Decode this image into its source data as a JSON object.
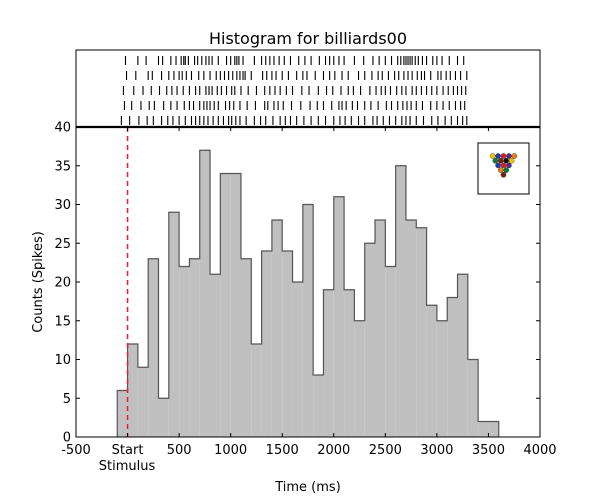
{
  "chart_data": {
    "type": "bar",
    "title": "Histogram for billiards00",
    "xlabel": "Time (ms)",
    "ylabel": "Counts (Spikes)",
    "xlim": [
      -500,
      4000
    ],
    "ylim": [
      0,
      40
    ],
    "x_ticks": [
      {
        "value": -500,
        "label": "-500"
      },
      {
        "value": 0,
        "label": "Start"
      },
      {
        "value": 500,
        "label": "500"
      },
      {
        "value": 1000,
        "label": "1000"
      },
      {
        "value": 1500,
        "label": "1500"
      },
      {
        "value": 2000,
        "label": "2000"
      },
      {
        "value": 2500,
        "label": "2500"
      },
      {
        "value": 3000,
        "label": "3000"
      },
      {
        "value": 3500,
        "label": "3500"
      },
      {
        "value": 4000,
        "label": "4000"
      }
    ],
    "x_sublabel": "Stimulus",
    "y_ticks": [
      0,
      5,
      10,
      15,
      20,
      25,
      30,
      35,
      40
    ],
    "bin_width_ms": 100,
    "bin_edges_start_ms": -100,
    "values": [
      6,
      12,
      9,
      23,
      5,
      29,
      22,
      23,
      37,
      21,
      34,
      34,
      23,
      12,
      24,
      28,
      24,
      20,
      30,
      8,
      19,
      31,
      19,
      15,
      25,
      28,
      22,
      35,
      28,
      27,
      17,
      15,
      18,
      21,
      10,
      2,
      2
    ],
    "stimulus_marker_ms": 0,
    "bar_fill": "#c0c0c0",
    "bar_edge": "#555555",
    "stimulus_line_color": "#e8202a",
    "raster": {
      "rows": [
        [
          -20,
          100,
          180,
          300,
          340,
          420,
          470,
          520,
          545,
          560,
          590,
          650,
          680,
          720,
          760,
          790,
          820,
          880,
          960,
          1000,
          1040,
          1060,
          1080,
          1120,
          1230,
          1300,
          1340,
          1380,
          1420,
          1470,
          1520,
          1580,
          1660,
          1720,
          1780,
          1860,
          1920,
          1960,
          2000,
          2050,
          2100,
          2200,
          2290,
          2380,
          2440,
          2500,
          2560,
          2620,
          2650,
          2680,
          2700,
          2720,
          2740,
          2760,
          2790,
          2820,
          2860,
          2900,
          2960,
          3000,
          3050,
          3120,
          3200,
          3260
        ],
        [
          -10,
          80,
          200,
          240,
          330,
          400,
          450,
          500,
          530,
          570,
          620,
          690,
          740,
          800,
          860,
          900,
          940,
          980,
          1020,
          1060,
          1090,
          1120,
          1140,
          1200,
          1310,
          1350,
          1400,
          1440,
          1500,
          1560,
          1640,
          1700,
          1740,
          1820,
          1900,
          1960,
          2010,
          2080,
          2140,
          2240,
          2300,
          2370,
          2430,
          2470,
          2530,
          2590,
          2630,
          2680,
          2720,
          2760,
          2810,
          2850,
          2880,
          2940,
          3010,
          3040,
          3090,
          3130,
          3180,
          3230,
          3290
        ],
        [
          -40,
          60,
          150,
          230,
          310,
          380,
          430,
          480,
          540,
          600,
          660,
          700,
          760,
          790,
          820,
          870,
          910,
          960,
          1010,
          1040,
          1100,
          1170,
          1250,
          1330,
          1380,
          1430,
          1480,
          1540,
          1600,
          1690,
          1760,
          1850,
          1930,
          1990,
          2070,
          2140,
          2190,
          2260,
          2350,
          2410,
          2460,
          2500,
          2550,
          2610,
          2660,
          2700,
          2760,
          2800,
          2850,
          2900,
          2950,
          3000,
          3060,
          3110,
          3160,
          3200,
          3240,
          3280
        ],
        [
          -30,
          40,
          130,
          210,
          260,
          350,
          420,
          480,
          550,
          600,
          640,
          700,
          740,
          770,
          800,
          840,
          880,
          950,
          990,
          1030,
          1090,
          1160,
          1240,
          1330,
          1360,
          1420,
          1460,
          1510,
          1590,
          1680,
          1770,
          1840,
          1900,
          1980,
          2050,
          2080,
          2120,
          2180,
          2230,
          2300,
          2360,
          2430,
          2510,
          2560,
          2620,
          2670,
          2710,
          2750,
          2800,
          2860,
          2940,
          3000,
          3060,
          3120,
          3180,
          3230,
          3270
        ],
        [
          -60,
          20,
          110,
          190,
          250,
          330,
          390,
          440,
          500,
          560,
          620,
          660,
          700,
          740,
          780,
          830,
          880,
          930,
          980,
          1010,
          1050,
          1090,
          1150,
          1230,
          1290,
          1340,
          1410,
          1480,
          1530,
          1580,
          1640,
          1710,
          1780,
          1850,
          1920,
          2000,
          2060,
          2110,
          2170,
          2240,
          2300,
          2380,
          2420,
          2480,
          2540,
          2600,
          2660,
          2700,
          2740,
          2800,
          2870,
          2950,
          3010,
          3080,
          3140,
          3200,
          3250,
          3290
        ]
      ]
    },
    "inset_icon": "billiard-balls-triangle-icon",
    "grid": false
  }
}
